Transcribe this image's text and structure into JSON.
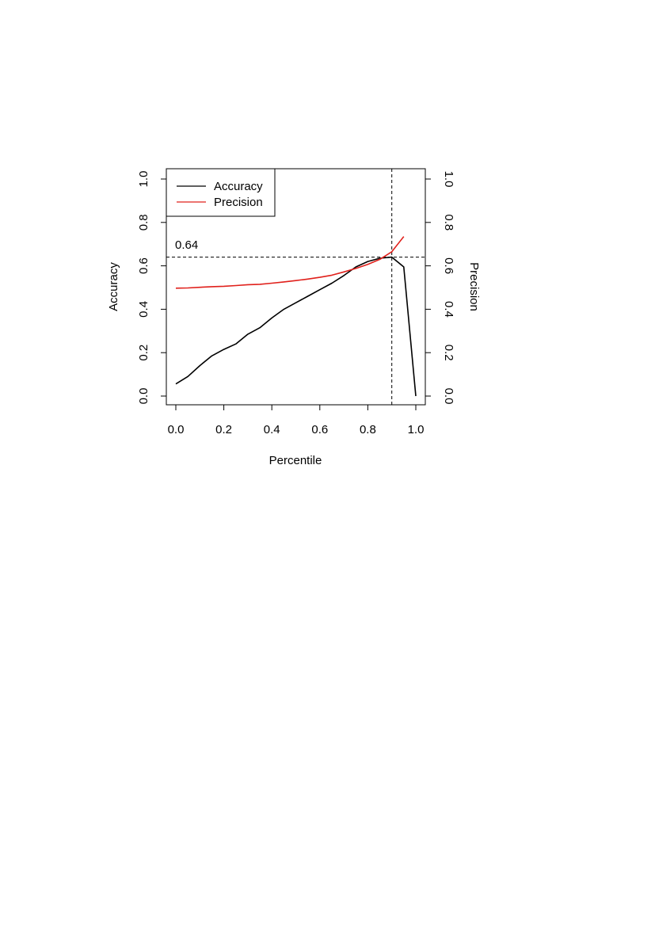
{
  "chart_data": {
    "type": "line",
    "xlabel": "Percentile",
    "ylabel": "Accuracy",
    "y2label": "Precision",
    "xlim": [
      0,
      1
    ],
    "ylim": [
      0,
      1
    ],
    "y2lim": [
      0,
      1
    ],
    "xticks": [
      "0.0",
      "0.2",
      "0.4",
      "0.6",
      "0.8",
      "1.0"
    ],
    "yticks": [
      "0.0",
      "0.2",
      "0.4",
      "0.6",
      "0.8",
      "1.0"
    ],
    "y2ticks": [
      "0.0",
      "0.2",
      "0.4",
      "0.6",
      "0.8",
      "1.0"
    ],
    "legend_position": "top-left",
    "legend": [
      {
        "label": "Accuracy",
        "color": "#000000"
      },
      {
        "label": "Precision",
        "color": "#e0201b"
      }
    ],
    "series": [
      {
        "name": "Accuracy",
        "axis": "left",
        "color": "#000000",
        "x": [
          0.0,
          0.05,
          0.1,
          0.15,
          0.2,
          0.25,
          0.3,
          0.35,
          0.4,
          0.45,
          0.5,
          0.55,
          0.6,
          0.65,
          0.7,
          0.75,
          0.8,
          0.85,
          0.9,
          0.95,
          1.0
        ],
        "y": [
          0.056,
          0.09,
          0.14,
          0.185,
          0.215,
          0.24,
          0.285,
          0.315,
          0.36,
          0.4,
          0.43,
          0.46,
          0.49,
          0.52,
          0.555,
          0.595,
          0.62,
          0.635,
          0.64,
          0.595,
          0.0
        ]
      },
      {
        "name": "Precision",
        "axis": "right",
        "color": "#e0201b",
        "x": [
          0.0,
          0.05,
          0.1,
          0.15,
          0.2,
          0.25,
          0.3,
          0.35,
          0.4,
          0.45,
          0.5,
          0.55,
          0.6,
          0.65,
          0.7,
          0.75,
          0.8,
          0.85,
          0.9,
          0.95
        ],
        "y": [
          0.497,
          0.498,
          0.501,
          0.504,
          0.506,
          0.509,
          0.513,
          0.515,
          0.52,
          0.526,
          0.532,
          0.539,
          0.547,
          0.557,
          0.572,
          0.588,
          0.607,
          0.63,
          0.665,
          0.735
        ]
      }
    ],
    "reference_lines": [
      {
        "orientation": "horizontal",
        "value": 0.64,
        "label": "0.64",
        "style": "dashed"
      },
      {
        "orientation": "vertical",
        "value": 0.9,
        "style": "dashed"
      }
    ]
  }
}
